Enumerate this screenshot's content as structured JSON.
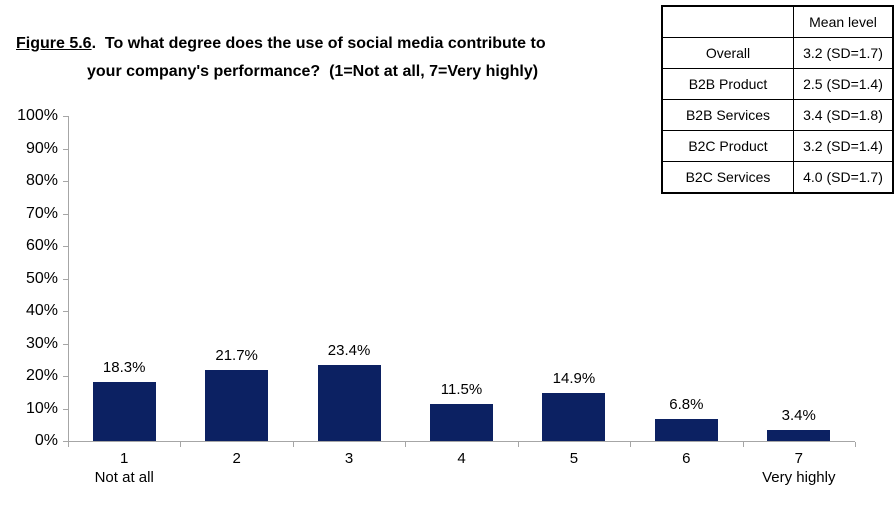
{
  "title": {
    "figure_label": "Figure 5.6",
    "separator": ".  ",
    "line1": "To what degree does the use of social media contribute to",
    "line2": "your company's performance?  (1=Not at all, 7=Very highly)"
  },
  "mean_table": {
    "corner": "",
    "header": "Mean level",
    "rows": [
      {
        "label": "Overall",
        "value": "3.2 (SD=1.7)"
      },
      {
        "label": "B2B Product",
        "value": "2.5 (SD=1.4)"
      },
      {
        "label": "B2B Services",
        "value": "3.4 (SD=1.8)"
      },
      {
        "label": "B2C Product",
        "value": "3.2 (SD=1.4)"
      },
      {
        "label": "B2C Services",
        "value": "4.0 (SD=1.7)"
      }
    ]
  },
  "chart_data": {
    "type": "bar",
    "title": "Figure 5.6. To what degree does the use of social media contribute to your company's performance? (1=Not at all, 7=Very highly)",
    "categories": [
      "1",
      "2",
      "3",
      "4",
      "5",
      "6",
      "7"
    ],
    "category_sublabels": [
      "Not at all",
      "",
      "",
      "",
      "",
      "",
      "Very highly"
    ],
    "values": [
      18.3,
      21.7,
      23.4,
      11.5,
      14.9,
      6.8,
      3.4
    ],
    "data_labels": [
      "18.3%",
      "21.7%",
      "23.4%",
      "11.5%",
      "14.9%",
      "6.8%",
      "3.4%"
    ],
    "xlabel": "",
    "ylabel": "",
    "ylim": [
      0,
      100
    ],
    "y_tick_labels": [
      "100%",
      "90%",
      "80%",
      "70%",
      "60%",
      "50%",
      "40%",
      "30%",
      "20%",
      "10%",
      "0%"
    ],
    "grid": false,
    "legend": false,
    "bar_color": "#0c2162",
    "axis_color": "#a6a6a6"
  }
}
